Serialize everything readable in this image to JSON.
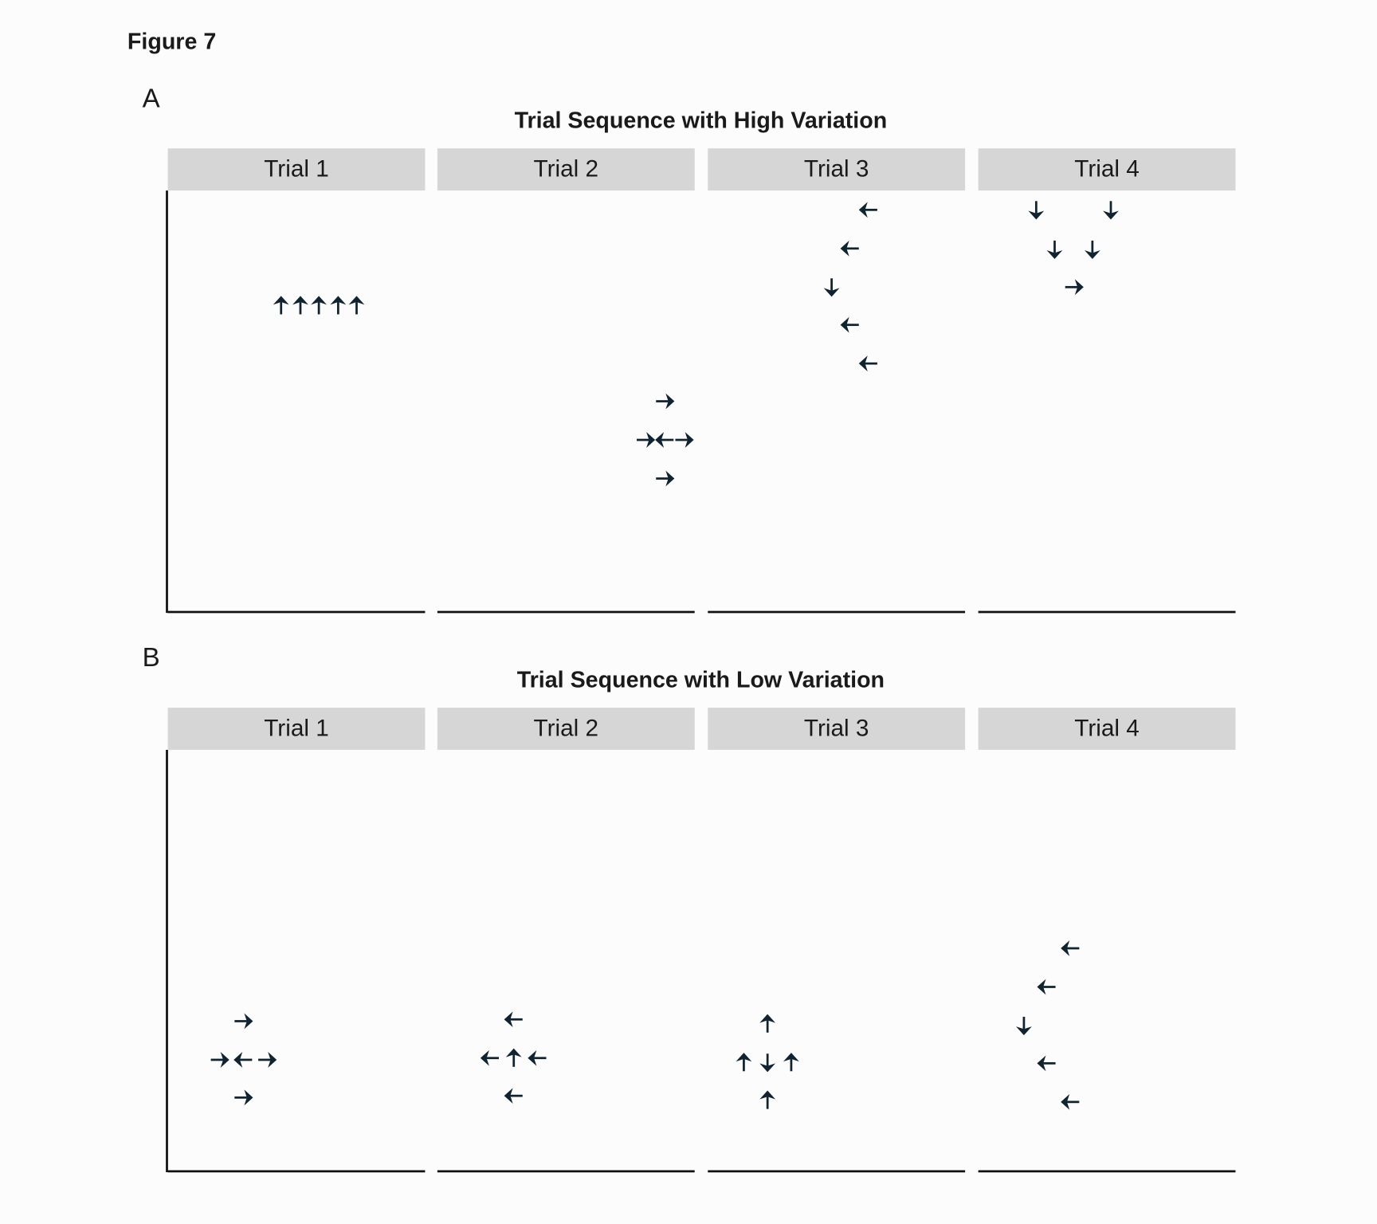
{
  "figure_title": "Figure 7",
  "panels": [
    {
      "label": "A",
      "title": "Trial Sequence with High Variation",
      "facets": [
        "Trial 1",
        "Trial 2",
        "Trial 3",
        "Trial 4"
      ]
    },
    {
      "label": "B",
      "title": "Trial Sequence with Low Variation",
      "facets": [
        "Trial 1",
        "Trial 2",
        "Trial 3",
        "Trial 4"
      ]
    }
  ]
}
